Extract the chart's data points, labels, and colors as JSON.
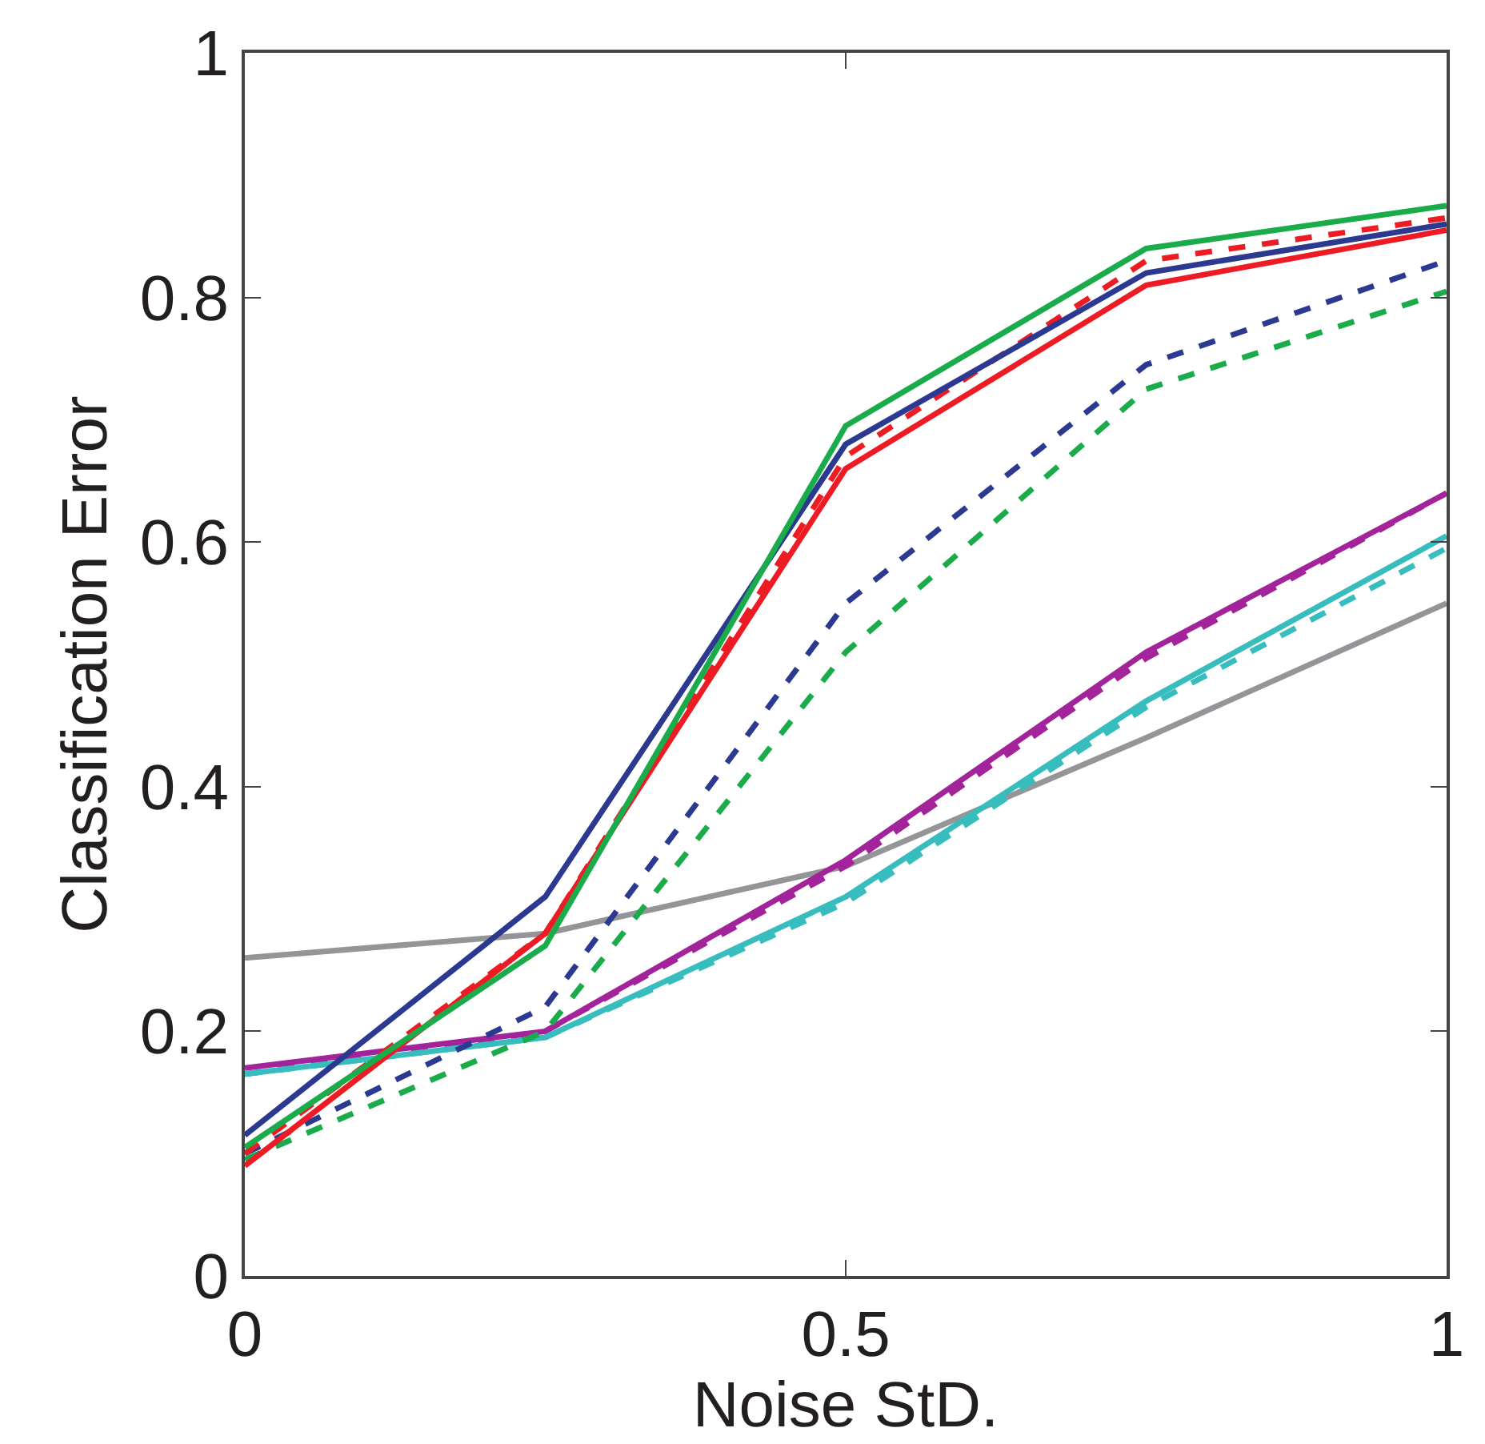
{
  "chart_data": {
    "type": "line",
    "xlabel": "Noise StD.",
    "ylabel": "Classification Error",
    "x": [
      0,
      0.25,
      0.5,
      0.75,
      1
    ],
    "series": [
      {
        "color": "#939598",
        "values": [
          0.26,
          0.28,
          0.335,
          0.44,
          0.55
        ]
      },
      {
        "color": "#a2239a",
        "line_style": "dashed",
        "values": [
          0.165,
          0.2,
          0.335,
          0.505,
          0.64
        ]
      },
      {
        "color": "#a2239a",
        "values": [
          0.17,
          0.2,
          0.34,
          0.51,
          0.64
        ]
      },
      {
        "color": "#37bdbd",
        "line_style": "dashed",
        "values": [
          0.165,
          0.195,
          0.305,
          0.465,
          0.595
        ]
      },
      {
        "color": "#37bdbd",
        "values": [
          0.165,
          0.195,
          0.31,
          0.47,
          0.605
        ]
      },
      {
        "color": "#1aab4b",
        "line_style": "dashed",
        "values": [
          0.095,
          0.2,
          0.51,
          0.725,
          0.805
        ]
      },
      {
        "color": "#2b3990",
        "line_style": "dashed",
        "values": [
          0.1,
          0.22,
          0.55,
          0.745,
          0.83
        ]
      },
      {
        "color": "#ed1c24",
        "line_style": "dashed",
        "values": [
          0.1,
          0.28,
          0.67,
          0.83,
          0.865
        ]
      },
      {
        "color": "#ed1c24",
        "values": [
          0.09,
          0.28,
          0.66,
          0.81,
          0.855
        ]
      },
      {
        "color": "#2b3990",
        "values": [
          0.115,
          0.31,
          0.68,
          0.82,
          0.86
        ]
      },
      {
        "color": "#1aab4b",
        "values": [
          0.105,
          0.27,
          0.695,
          0.84,
          0.875
        ]
      }
    ],
    "xlim": [
      0,
      1
    ],
    "xticks": [
      0,
      0.5,
      1
    ],
    "ylim": [
      0,
      1
    ],
    "yticks": [
      0,
      0.2,
      0.4,
      0.6,
      0.8,
      1
    ],
    "marker": "none",
    "line_style": "solid"
  }
}
